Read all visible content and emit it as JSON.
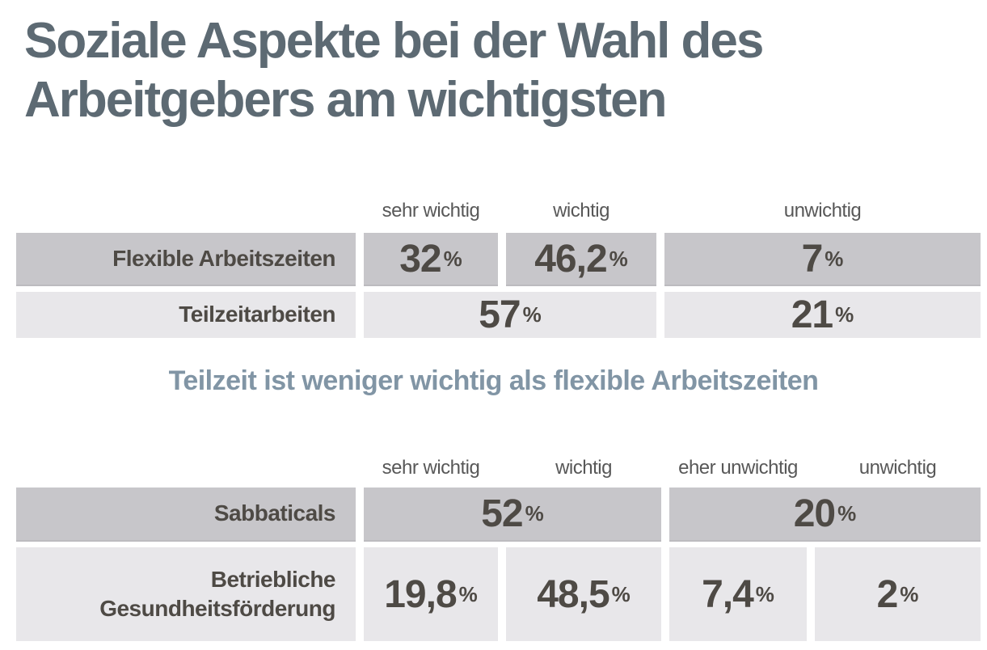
{
  "title": {
    "line1": "Soziale Aspekte bei der Wahl des",
    "line2": "Arbeitgebers am wichtigsten"
  },
  "subtitle": "Teilzeit ist weniger wichtig als flexible Arbeitszeiten",
  "unit": "%",
  "colors": {
    "title": "#5d6a73",
    "subtitle": "#8195a5",
    "row_dark": "#c7c6ca",
    "row_light": "#e8e7ea",
    "value_text": "#4e4a45",
    "header_text": "#585858",
    "background": "#ffffff"
  },
  "tables": [
    {
      "headers": [
        {
          "label": "sehr wichtig"
        },
        {
          "label": "wichtig"
        },
        {
          "label": "unwichtig"
        }
      ],
      "rows": [
        {
          "label": "Flexible Arbeitszeiten",
          "cells": [
            {
              "number": "32"
            },
            {
              "number": "46,2"
            },
            {
              "number": "7"
            }
          ]
        },
        {
          "label": "Teilzeitarbeiten",
          "cells": [
            {
              "number": "57"
            },
            {
              "number": "21"
            }
          ]
        }
      ]
    },
    {
      "headers": [
        {
          "label": "sehr wichtig"
        },
        {
          "label": "wichtig"
        },
        {
          "label": "eher unwichtig"
        },
        {
          "label": "unwichtig"
        }
      ],
      "rows": [
        {
          "label": "Sabbaticals",
          "cells": [
            {
              "number": "52"
            },
            {
              "number": "20"
            }
          ]
        },
        {
          "label": "Betriebliche Gesundheitsförderung",
          "cells": [
            {
              "number": "19,8"
            },
            {
              "number": "48,5"
            },
            {
              "number": "7,4"
            },
            {
              "number": "2"
            }
          ]
        }
      ]
    }
  ],
  "chart_data": [
    {
      "type": "table",
      "title": "Soziale Aspekte bei der Wahl des Arbeitgebers am wichtigsten",
      "unit": "%",
      "categories": [
        "sehr wichtig",
        "wichtig",
        "unwichtig"
      ],
      "rows": [
        {
          "label": "Flexible Arbeitszeiten",
          "values": [
            32,
            46.2,
            7
          ],
          "spans": [
            [
              "sehr wichtig"
            ],
            [
              "wichtig"
            ],
            [
              "unwichtig"
            ]
          ]
        },
        {
          "label": "Teilzeitarbeiten",
          "values": [
            57,
            21
          ],
          "spans": [
            [
              "sehr wichtig",
              "wichtig"
            ],
            [
              "unwichtig"
            ]
          ]
        }
      ],
      "annotation": "Teilzeit ist weniger wichtig als flexible Arbeitszeiten"
    },
    {
      "type": "table",
      "title": "",
      "unit": "%",
      "categories": [
        "sehr wichtig",
        "wichtig",
        "eher unwichtig",
        "unwichtig"
      ],
      "rows": [
        {
          "label": "Sabbaticals",
          "values": [
            52,
            20
          ],
          "spans": [
            [
              "sehr wichtig",
              "wichtig"
            ],
            [
              "eher unwichtig",
              "unwichtig"
            ]
          ]
        },
        {
          "label": "Betriebliche Gesundheitsförderung",
          "values": [
            19.8,
            48.5,
            7.4,
            2
          ],
          "spans": [
            [
              "sehr wichtig"
            ],
            [
              "wichtig"
            ],
            [
              "eher unwichtig"
            ],
            [
              "unwichtig"
            ]
          ]
        }
      ]
    }
  ]
}
